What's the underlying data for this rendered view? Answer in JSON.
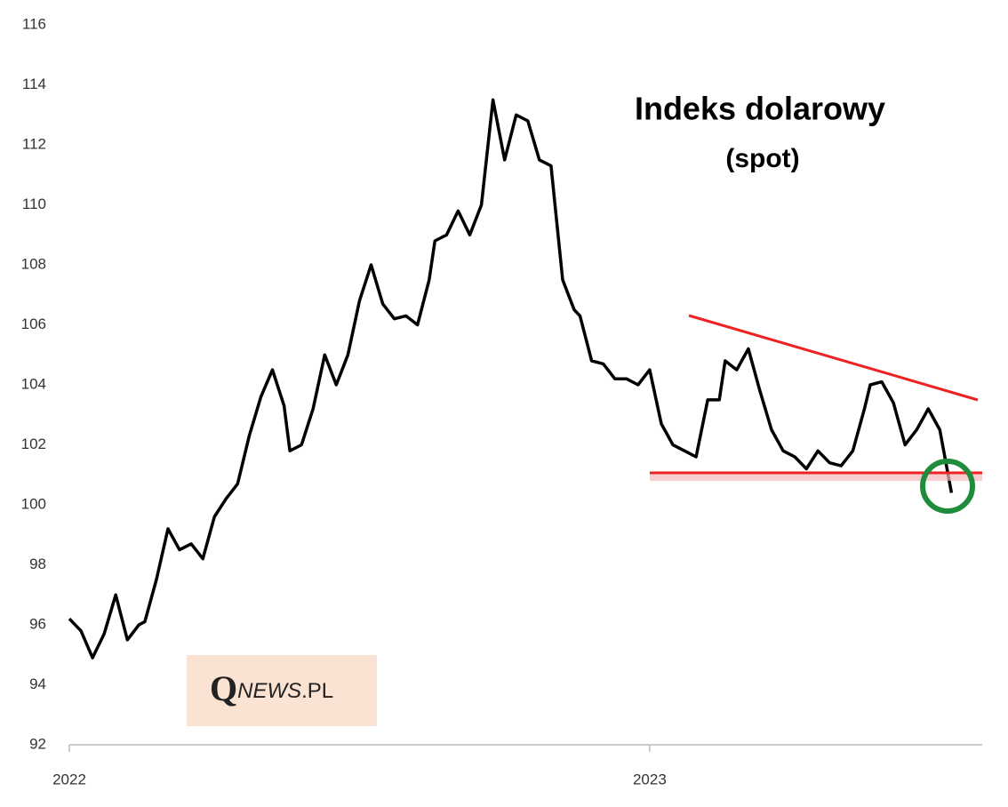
{
  "chart_data": {
    "type": "line",
    "title": "Indeks dolarowy",
    "subtitle": "(spot)",
    "logo": [
      "Q",
      "NEWS",
      ".PL"
    ],
    "x": [
      2022.0,
      2022.02,
      2022.04,
      2022.06,
      2022.08,
      2022.1,
      2022.12,
      2022.13,
      2022.15,
      2022.17,
      2022.19,
      2022.21,
      2022.23,
      2022.25,
      2022.27,
      2022.29,
      2022.31,
      2022.33,
      2022.35,
      2022.37,
      2022.38,
      2022.4,
      2022.42,
      2022.44,
      2022.46,
      2022.48,
      2022.5,
      2022.52,
      2022.54,
      2022.56,
      2022.58,
      2022.6,
      2022.62,
      2022.63,
      2022.65,
      2022.67,
      2022.69,
      2022.71,
      2022.73,
      2022.75,
      2022.77,
      2022.79,
      2022.81,
      2022.83,
      2022.85,
      2022.87,
      2022.88,
      2022.9,
      2022.92,
      2022.94,
      2022.96,
      2022.98,
      2023.0,
      2023.02,
      2023.04,
      2023.06,
      2023.08,
      2023.1,
      2023.12,
      2023.13,
      2023.15,
      2023.17,
      2023.19,
      2023.21,
      2023.23,
      2023.25,
      2023.27,
      2023.29,
      2023.31,
      2023.33,
      2023.35,
      2023.37,
      2023.38,
      2023.4,
      2023.42,
      2023.44,
      2023.46,
      2023.48,
      2023.5,
      2023.52
    ],
    "values": [
      96.2,
      95.8,
      94.9,
      95.7,
      97.0,
      95.5,
      96.0,
      96.1,
      97.5,
      99.2,
      98.5,
      98.7,
      98.2,
      99.6,
      100.2,
      100.7,
      102.3,
      103.6,
      104.5,
      103.3,
      101.8,
      102.0,
      103.2,
      105.0,
      104.0,
      105.0,
      106.8,
      108.0,
      106.7,
      106.2,
      106.3,
      106.0,
      107.5,
      108.8,
      109.0,
      109.8,
      109.0,
      110.0,
      113.5,
      111.5,
      113.0,
      112.8,
      111.5,
      111.3,
      107.5,
      106.5,
      106.3,
      104.8,
      104.7,
      104.2,
      104.2,
      104.0,
      104.5,
      102.7,
      102.0,
      101.8,
      101.6,
      103.5,
      103.5,
      104.8,
      104.5,
      105.2,
      103.8,
      102.5,
      101.8,
      101.6,
      101.2,
      101.8,
      101.4,
      101.3,
      101.8,
      103.2,
      104.0,
      104.1,
      103.4,
      102.0,
      102.5,
      103.2,
      102.5,
      100.4
    ],
    "color": "#000000",
    "xlim": [
      2022,
      2023.573
    ],
    "xticks": [
      2022,
      2023
    ],
    "ylim": [
      92,
      116
    ],
    "yticks": [
      92,
      94,
      96,
      98,
      100,
      102,
      104,
      106,
      108,
      110,
      112,
      114,
      116
    ]
  }
}
